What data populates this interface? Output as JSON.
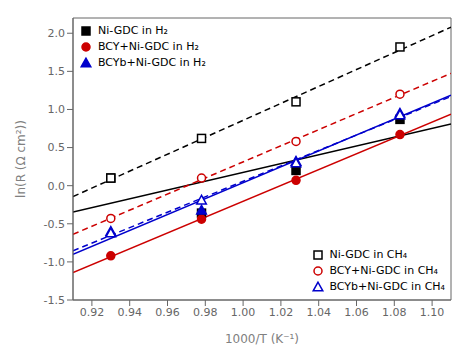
{
  "chart_data": {
    "type": "scatter",
    "xlabel": "1000/T (K⁻¹)",
    "ylabel": "ln(R (Ω cm²))",
    "xlim": [
      0.91,
      1.11
    ],
    "ylim": [
      -1.5,
      2.2
    ],
    "xticks": [
      0.92,
      0.94,
      0.96,
      0.98,
      {
        "value": 1.0,
        "label": "1.00"
      },
      1.02,
      1.04,
      1.06,
      1.08,
      {
        "value": 1.1,
        "label": "1.10"
      }
    ],
    "yticks": [
      -1.5,
      {
        "value": -1,
        "label": "-1.0"
      },
      -0.5,
      {
        "value": 0,
        "label": "0.0"
      },
      0.5,
      {
        "value": 1,
        "label": "1.0"
      },
      1.5,
      {
        "value": 2,
        "label": "2.0"
      }
    ],
    "fit_x": [
      0.91,
      1.11
    ],
    "series": [
      {
        "name": "Ni-GDC in H₂",
        "color": "#000000",
        "marker": "square",
        "line_style": "solid",
        "legend": "upper left",
        "x": [
          0.93,
          0.978,
          1.028,
          1.083
        ],
        "values": [
          0.1,
          -0.36,
          0.2,
          0.87
        ],
        "fit_values": [
          -0.3451,
          0.8108
        ]
      },
      {
        "name": "BCY+Ni-GDC in H₂",
        "color": "#cc0000",
        "marker": "circle",
        "line_style": "solid",
        "legend": "upper left",
        "x": [
          0.93,
          0.978,
          1.028,
          1.083
        ],
        "values": [
          -0.92,
          -0.44,
          0.07,
          0.67
        ],
        "fit_values": [
          -1.1393,
          0.9383
        ]
      },
      {
        "name": "BCYb+Ni-GDC in H₂",
        "color": "#0000cc",
        "marker": "triangle",
        "line_style": "solid",
        "legend": "upper left",
        "x": [
          0.93,
          0.978,
          1.028,
          1.083
        ],
        "values": [
          -0.6,
          -0.32,
          0.32,
          0.95
        ],
        "fit_values": [
          -0.9011,
          1.1857
        ]
      },
      {
        "name": "Ni-GDC in CH₄",
        "color": "#000000",
        "marker": "square_open",
        "line_style": "dashed",
        "legend": "lower right",
        "x": [
          0.93,
          0.978,
          1.028,
          1.083
        ],
        "values": [
          0.1,
          0.62,
          1.1,
          1.82
        ],
        "fit_values": [
          -0.1425,
          2.0792
        ]
      },
      {
        "name": "BCY+Ni-GDC in CH₄",
        "color": "#cc0000",
        "marker": "circle_open",
        "line_style": "dashed",
        "legend": "lower right",
        "x": [
          0.93,
          0.978,
          1.028,
          1.083
        ],
        "values": [
          -0.43,
          0.1,
          0.58,
          1.2
        ],
        "fit_values": [
          -0.6383,
          1.4742
        ]
      },
      {
        "name": "BCYb+Ni-GDC in CH₄",
        "color": "#0000cc",
        "marker": "triangle_open",
        "line_style": "dashed",
        "legend": "lower right",
        "x": [
          0.93,
          0.978,
          1.028,
          1.083
        ],
        "values": [
          -0.62,
          -0.19,
          0.3,
          0.93
        ],
        "fit_values": [
          -0.8543,
          1.1706
        ]
      }
    ]
  }
}
